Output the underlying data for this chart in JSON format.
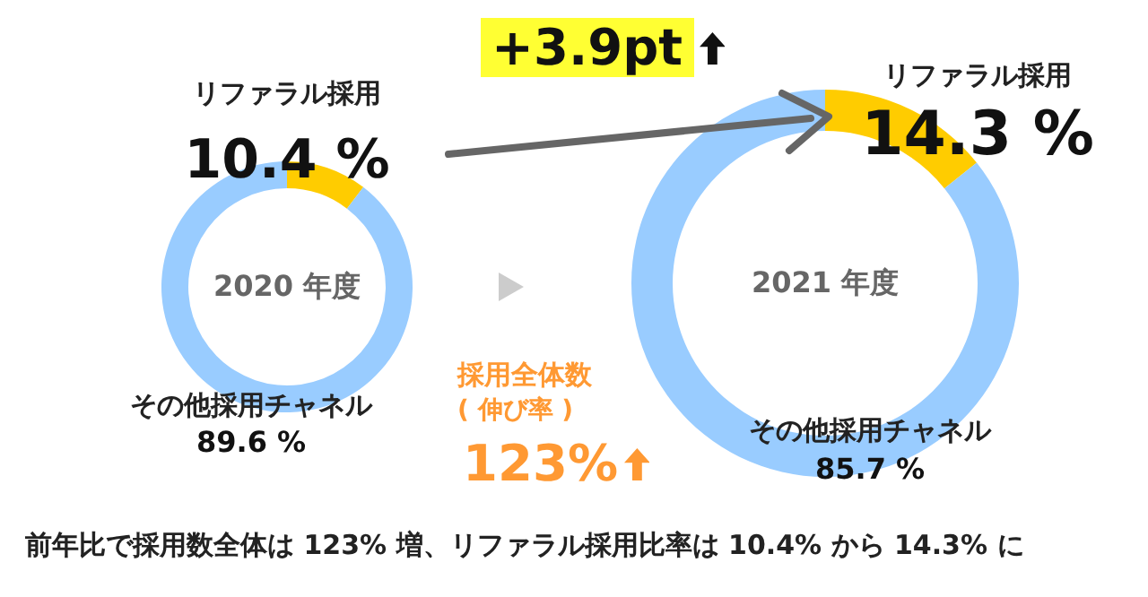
{
  "chart_data": [
    {
      "type": "donut",
      "title": "2020 年度",
      "categories": [
        "リファラル採用",
        "その他採用チャネル"
      ],
      "values": [
        10.4,
        89.6
      ],
      "colors": [
        "#ffcc00",
        "#99ccff"
      ],
      "value_labels": [
        "10.4 %",
        "89.6 %"
      ]
    },
    {
      "type": "donut",
      "title": "2021 年度",
      "categories": [
        "リファラル採用",
        "その他採用チャネル"
      ],
      "values": [
        14.3,
        85.7
      ],
      "colors": [
        "#ffcc00",
        "#99ccff"
      ],
      "value_labels": [
        "14.3 %",
        "85.7 %"
      ],
      "annotations": [
        "+3.9pt",
        "採用全体数",
        "( 伸び率 )",
        "123%",
        "前年比で採用数全体は 123% 増、リファラル採用比率は 10.4% から 14.3% に"
      ]
    }
  ]
}
